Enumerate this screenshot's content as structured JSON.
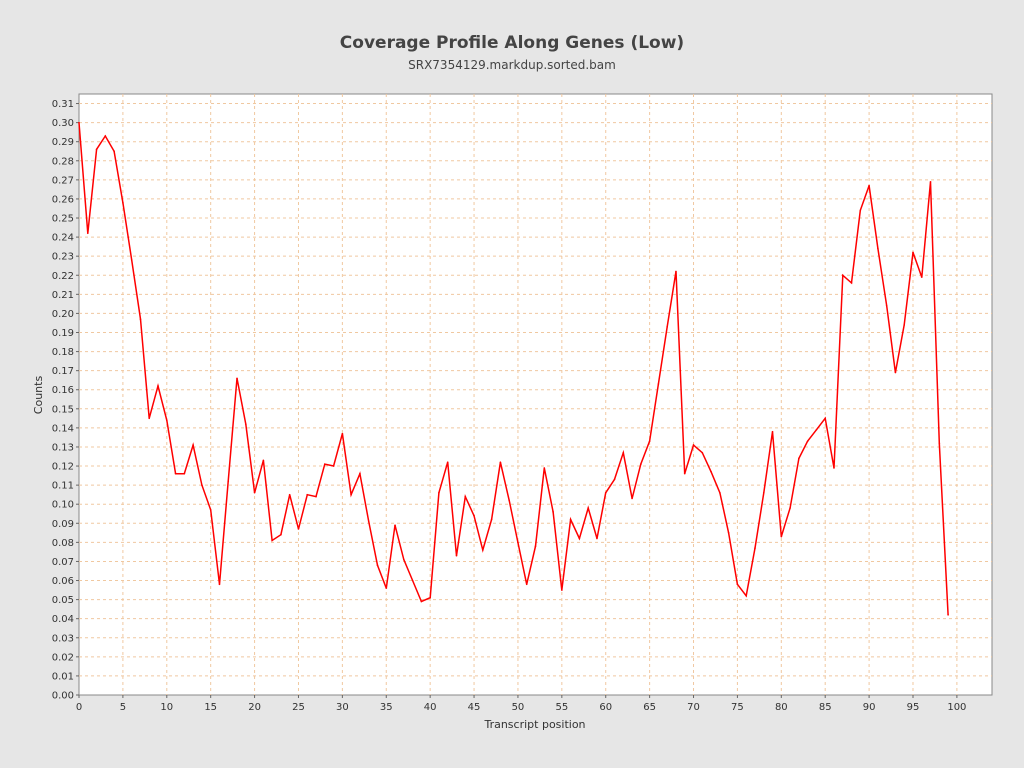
{
  "chart_data": {
    "type": "line",
    "title": "Coverage Profile Along Genes (Low)",
    "subtitle": "SRX7354129.markdup.sorted.bam",
    "xlabel": "Transcript position",
    "ylabel": "Counts",
    "xlim": [
      0,
      104
    ],
    "ylim": [
      0,
      0.315
    ],
    "xticks": [
      0,
      5,
      10,
      15,
      20,
      25,
      30,
      35,
      40,
      45,
      50,
      55,
      60,
      65,
      70,
      75,
      80,
      85,
      90,
      95,
      100
    ],
    "yticks": [
      0.0,
      0.01,
      0.02,
      0.03,
      0.04,
      0.05,
      0.06,
      0.07,
      0.08,
      0.09,
      0.1,
      0.11,
      0.12,
      0.13,
      0.14,
      0.15,
      0.16,
      0.17,
      0.18,
      0.19,
      0.2,
      0.21,
      0.22,
      0.23,
      0.24,
      0.25,
      0.26,
      0.27,
      0.28,
      0.29,
      0.3,
      0.31
    ],
    "grid": true,
    "line_color": "#ff0000",
    "grid_color": "#f0c8a0",
    "x": [
      0,
      1,
      2,
      3,
      4,
      5,
      6,
      7,
      8,
      9,
      10,
      11,
      12,
      13,
      14,
      15,
      16,
      17,
      18,
      19,
      20,
      21,
      22,
      23,
      24,
      25,
      26,
      27,
      28,
      29,
      30,
      31,
      32,
      33,
      34,
      35,
      36,
      37,
      38,
      39,
      40,
      41,
      42,
      43,
      44,
      45,
      46,
      47,
      48,
      49,
      50,
      51,
      52,
      53,
      54,
      55,
      56,
      57,
      58,
      59,
      60,
      61,
      62,
      63,
      64,
      65,
      66,
      67,
      68,
      69,
      70,
      71,
      72,
      73,
      74,
      75,
      76,
      77,
      78,
      79,
      80,
      81,
      82,
      83,
      84,
      85,
      86,
      87,
      88,
      89,
      90,
      91,
      92,
      93,
      94,
      95,
      96,
      97,
      98,
      99
    ],
    "values": [
      0.3,
      0.242,
      0.286,
      0.293,
      0.285,
      0.258,
      0.228,
      0.197,
      0.145,
      0.162,
      0.144,
      0.116,
      0.116,
      0.131,
      0.11,
      0.097,
      0.058,
      0.112,
      0.166,
      0.142,
      0.106,
      0.123,
      0.081,
      0.084,
      0.105,
      0.087,
      0.105,
      0.104,
      0.121,
      0.12,
      0.137,
      0.105,
      0.116,
      0.091,
      0.068,
      0.056,
      0.089,
      0.071,
      0.06,
      0.049,
      0.051,
      0.106,
      0.122,
      0.073,
      0.104,
      0.094,
      0.076,
      0.092,
      0.122,
      0.102,
      0.08,
      0.058,
      0.078,
      0.119,
      0.096,
      0.055,
      0.092,
      0.082,
      0.098,
      0.082,
      0.106,
      0.113,
      0.127,
      0.103,
      0.121,
      0.133,
      0.163,
      0.193,
      0.222,
      0.116,
      0.131,
      0.127,
      0.117,
      0.106,
      0.085,
      0.058,
      0.052,
      0.077,
      0.106,
      0.138,
      0.083,
      0.098,
      0.124,
      0.133,
      0.139,
      0.145,
      0.119,
      0.22,
      0.216,
      0.254,
      0.267,
      0.234,
      0.204,
      0.169,
      0.194,
      0.232,
      0.219,
      0.269,
      0.132,
      0.042
    ]
  }
}
